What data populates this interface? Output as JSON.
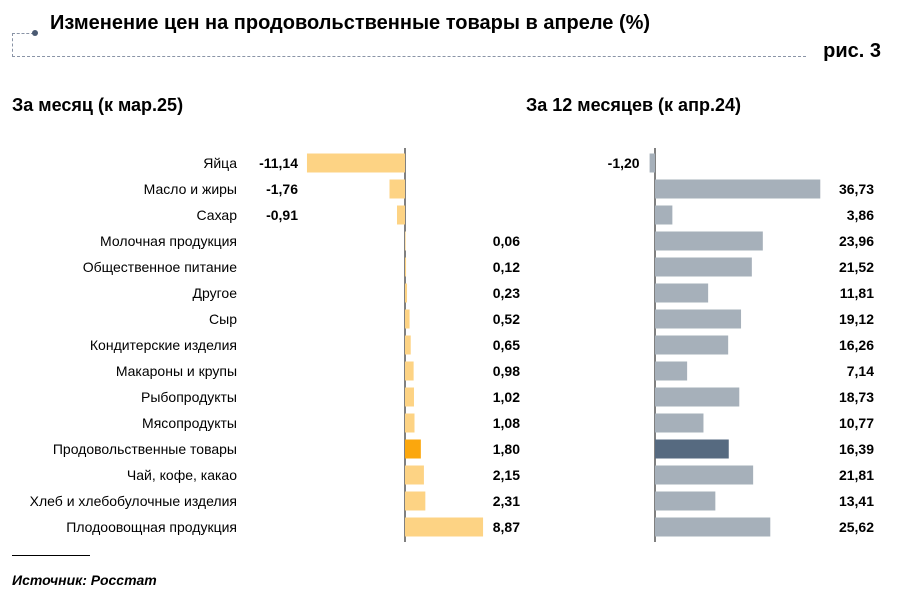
{
  "title": "Изменение цен на продовольственные товары в апреле (%)",
  "figure_label": "рис. 3",
  "source": "Источник: Росстат",
  "colors": {
    "left_bar": "#fdd384",
    "left_highlight": "#fba70d",
    "right_bar": "#a6b0ba",
    "right_highlight": "#566a80"
  },
  "chart_data": [
    {
      "type": "bar",
      "orientation": "horizontal",
      "title": "За месяц (к мар.25)",
      "categories": [
        "Яйца",
        "Масло и жиры",
        "Сахар",
        "Молочная продукция",
        "Общественное питание",
        "Другое",
        "Сыр",
        "Кондитерские изделия",
        "Макароны и крупы",
        "Рыбопродукты",
        "Мясопродукты",
        "Продовольственные товары",
        "Чай, кофе, какао",
        "Хлеб и хлебобулочные изделия",
        "Плодоовощная продукция"
      ],
      "values": [
        -11.14,
        -1.76,
        -0.91,
        0.06,
        0.12,
        0.23,
        0.52,
        0.65,
        0.98,
        1.02,
        1.08,
        1.8,
        2.15,
        2.31,
        8.87
      ],
      "labels": [
        "-11,14",
        "-1,76",
        "-0,91",
        "0,06",
        "0,12",
        "0,23",
        "0,52",
        "0,65",
        "0,98",
        "1,02",
        "1,08",
        "1,80",
        "2,15",
        "2,31",
        "8,87"
      ],
      "highlight": "Продовольственные товары"
    },
    {
      "type": "bar",
      "orientation": "horizontal",
      "title": "За 12 месяцев (к апр.24)",
      "categories": [
        "Яйца",
        "Масло и жиры",
        "Сахар",
        "Молочная продукция",
        "Общественное питание",
        "Другое",
        "Сыр",
        "Кондитерские изделия",
        "Макароны и крупы",
        "Рыбопродукты",
        "Мясопродукты",
        "Продовольственные товары",
        "Чай, кофе, какао",
        "Хлеб и хлебобулочные изделия",
        "Плодоовощная продукция"
      ],
      "values": [
        -1.2,
        36.73,
        3.86,
        23.96,
        21.52,
        11.81,
        19.12,
        16.26,
        7.14,
        18.73,
        10.77,
        16.39,
        21.81,
        13.41,
        25.62
      ],
      "labels": [
        "-1,20",
        "36,73",
        "3,86",
        "23,96",
        "21,52",
        "11,81",
        "19,12",
        "16,26",
        "7,14",
        "18,73",
        "10,77",
        "16,39",
        "21,81",
        "13,41",
        "25,62"
      ],
      "highlight": "Продовольственные товары"
    }
  ]
}
